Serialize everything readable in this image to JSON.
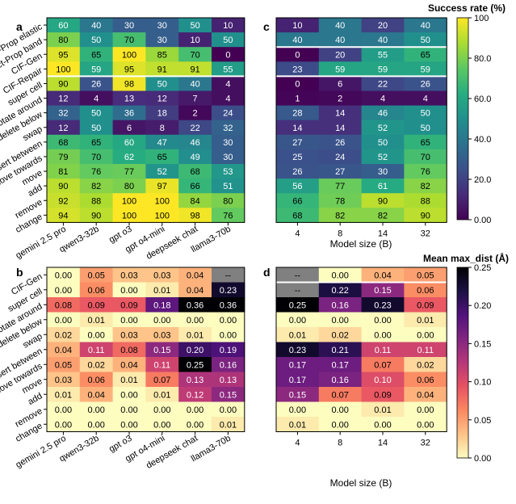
{
  "panel_labels": {
    "a": "a",
    "b": "b",
    "c": "c",
    "d": "d"
  },
  "colorbar_top": {
    "title": "Success rate (%)",
    "ticks": [
      "100",
      "80.0",
      "60.0",
      "40.0",
      "20.0",
      "0.00"
    ],
    "range": [
      0,
      100
    ],
    "colormap": "viridis"
  },
  "colorbar_bottom": {
    "title": "Mean max_dist (Å)",
    "ticks": [
      "0.25",
      "0.20",
      "0.15",
      "0.10",
      "0.05",
      "0.00"
    ],
    "range": [
      0,
      0.25
    ],
    "colormap": "magma_r"
  },
  "xlabel_model_size": "Model size (B)",
  "chart_data": [
    {
      "panel": "a",
      "type": "heatmap",
      "columns": [
        "gemini 2.5 pro",
        "qwen3-32b",
        "gpt o3",
        "gpt o4-mini",
        "deepseek chat",
        "llama3-70b"
      ],
      "rows": [
        "Struct-Prop elastic",
        "Struct-Prop band",
        "CIF-Gen",
        "CIF-Repair",
        "super cell",
        "rotate around",
        "delete below",
        "swap",
        "insert between",
        "move towards",
        "move",
        "add",
        "remove",
        "change"
      ],
      "values": [
        [
          60,
          40,
          30,
          30,
          50,
          10
        ],
        [
          80,
          50,
          70,
          30,
          10,
          50
        ],
        [
          95,
          65,
          100,
          85,
          70,
          0
        ],
        [
          100,
          59,
          95,
          91,
          91,
          55
        ],
        [
          90,
          26,
          98,
          50,
          40,
          4
        ],
        [
          12,
          4,
          13,
          12,
          7,
          4
        ],
        [
          32,
          50,
          36,
          18,
          2,
          24
        ],
        [
          12,
          50,
          6,
          8,
          22,
          32
        ],
        [
          68,
          65,
          60,
          47,
          46,
          30
        ],
        [
          79,
          70,
          62,
          65,
          49,
          30
        ],
        [
          81,
          76,
          77,
          52,
          68,
          53
        ],
        [
          90,
          82,
          80,
          97,
          66,
          51
        ],
        [
          92,
          88,
          100,
          100,
          84,
          80
        ],
        [
          94,
          90,
          100,
          100,
          98,
          76
        ]
      ],
      "range": [
        0,
        100
      ]
    },
    {
      "panel": "c",
      "type": "heatmap",
      "columns": [
        "4",
        "8",
        "14",
        "32"
      ],
      "xlabel": "Model size (B)",
      "values": [
        [
          10,
          40,
          20,
          40
        ],
        [
          40,
          40,
          40,
          50
        ],
        [
          0,
          20,
          55,
          65
        ],
        [
          23,
          59,
          59,
          59
        ],
        [
          0,
          6,
          22,
          26
        ],
        [
          1,
          2,
          4,
          4
        ],
        [
          28,
          14,
          46,
          50
        ],
        [
          14,
          14,
          52,
          50
        ],
        [
          27,
          26,
          50,
          65
        ],
        [
          25,
          24,
          52,
          70
        ],
        [
          26,
          27,
          30,
          76
        ],
        [
          56,
          77,
          61,
          82
        ],
        [
          66,
          78,
          90,
          88
        ],
        [
          68,
          82,
          82,
          90
        ]
      ],
      "range": [
        0,
        100
      ]
    },
    {
      "panel": "b",
      "type": "heatmap",
      "columns": [
        "gemini 2.5 pro",
        "qwen3-32b",
        "gpt o3",
        "gpt o4-mini",
        "deepseek chat",
        "llama3-70b"
      ],
      "rows": [
        "CIF-Gen",
        "super cell",
        "rotate around",
        "delete below",
        "swap",
        "insert between",
        "move towards",
        "move",
        "add",
        "remove",
        "change"
      ],
      "values": [
        [
          0.0,
          0.05,
          0.03,
          0.03,
          0.04,
          null
        ],
        [
          0.0,
          0.06,
          0.0,
          0.01,
          0.04,
          0.23
        ],
        [
          0.08,
          0.09,
          0.09,
          0.18,
          0.36,
          0.36
        ],
        [
          0.0,
          0.01,
          0.0,
          0.0,
          0.0,
          0.0
        ],
        [
          0.02,
          0.0,
          0.03,
          0.03,
          0.01,
          0.0
        ],
        [
          0.04,
          0.11,
          0.08,
          0.15,
          0.2,
          0.19
        ],
        [
          0.05,
          0.02,
          0.04,
          0.11,
          0.25,
          0.16
        ],
        [
          0.03,
          0.06,
          0.01,
          0.07,
          0.13,
          0.13
        ],
        [
          0.01,
          0.04,
          0.0,
          0.01,
          0.12,
          0.15
        ],
        [
          0.0,
          0.0,
          0.0,
          0.0,
          0.0,
          0.0
        ],
        [
          0.0,
          0.0,
          0.0,
          0.0,
          0.0,
          0.01
        ]
      ],
      "missing_label": "--",
      "range": [
        0,
        0.25
      ]
    },
    {
      "panel": "d",
      "type": "heatmap",
      "columns": [
        "4",
        "8",
        "14",
        "32"
      ],
      "xlabel": "Model size (B)",
      "values": [
        [
          null,
          0.0,
          0.04,
          0.05
        ],
        [
          null,
          0.22,
          0.15,
          0.06
        ],
        [
          0.25,
          0.16,
          0.23,
          0.09
        ],
        [
          0.0,
          0.0,
          0.0,
          0.01
        ],
        [
          0.01,
          0.02,
          0.0,
          0.0
        ],
        [
          0.23,
          0.21,
          0.11,
          0.11
        ],
        [
          0.17,
          0.17,
          0.07,
          0.02
        ],
        [
          0.17,
          0.16,
          0.1,
          0.06
        ],
        [
          0.15,
          0.07,
          0.09,
          0.04
        ],
        [
          0.0,
          0.0,
          0.01,
          0.0
        ],
        [
          0.01,
          0.0,
          0.0,
          0.0
        ]
      ],
      "missing_label": "--",
      "range": [
        0,
        0.25
      ]
    }
  ]
}
